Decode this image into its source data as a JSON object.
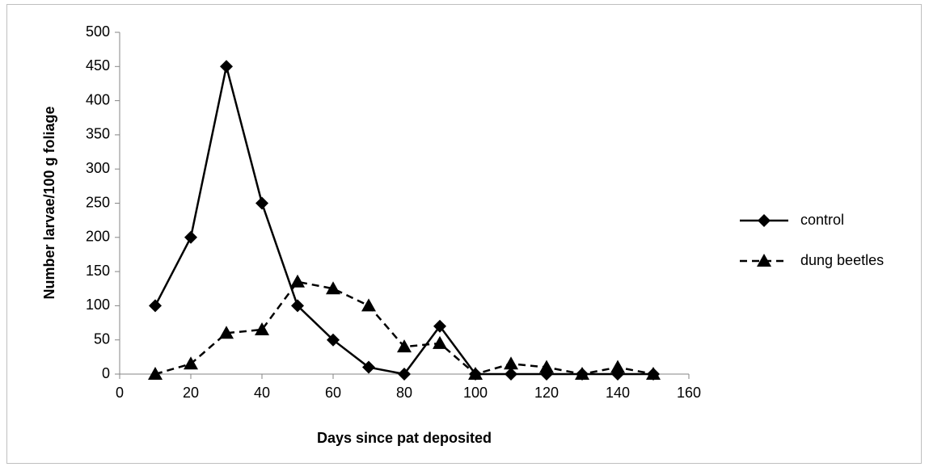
{
  "chart_data": {
    "type": "line",
    "x_label": "Days since pat deposited",
    "y_label": "Number larvae/100 g foliage",
    "x": [
      10,
      20,
      30,
      40,
      50,
      60,
      70,
      80,
      90,
      100,
      110,
      120,
      130,
      140,
      150
    ],
    "series": [
      {
        "name": "control",
        "color": "#000000",
        "marker": "diamond",
        "line_style": "solid",
        "values": [
          100,
          200,
          450,
          250,
          100,
          50,
          10,
          0,
          70,
          0,
          0,
          0,
          0,
          0,
          0
        ]
      },
      {
        "name": "dung beetles",
        "color": "#000000",
        "marker": "triangle",
        "line_style": "dashed",
        "values": [
          0,
          15,
          60,
          65,
          135,
          125,
          100,
          40,
          45,
          0,
          15,
          10,
          0,
          10,
          0
        ]
      }
    ],
    "xlim": [
      0,
      160
    ],
    "xticks": [
      0,
      20,
      40,
      60,
      80,
      100,
      120,
      140,
      160
    ],
    "ylim": [
      0,
      500
    ],
    "yticks": [
      0,
      50,
      100,
      150,
      200,
      250,
      300,
      350,
      400,
      450,
      500
    ],
    "grid": false,
    "legend": "right"
  }
}
